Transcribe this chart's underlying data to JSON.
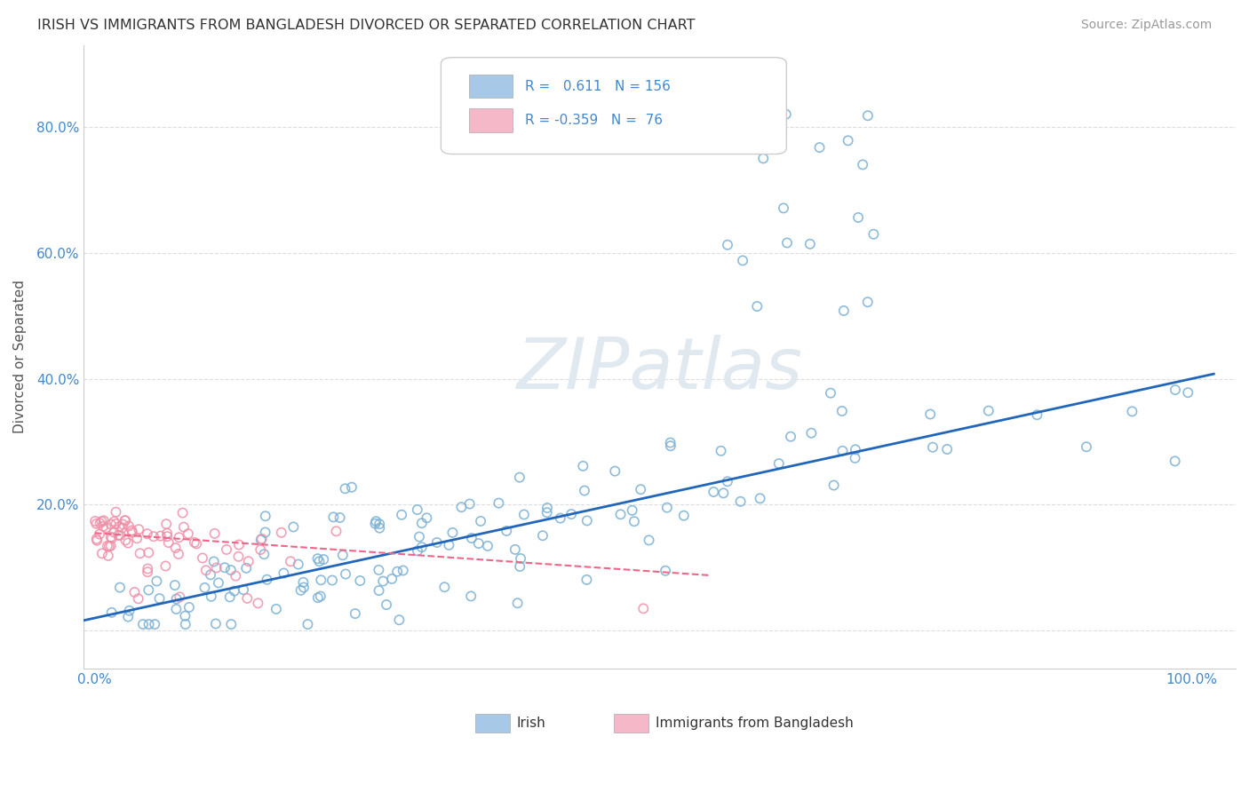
{
  "title": "IRISH VS IMMIGRANTS FROM BANGLADESH DIVORCED OR SEPARATED CORRELATION CHART",
  "source": "Source: ZipAtlas.com",
  "ylabel": "Divorced or Separated",
  "legend_irish": {
    "R": 0.611,
    "N": 156,
    "color": "#a8c8e8"
  },
  "legend_bangladesh": {
    "R": -0.359,
    "N": 76,
    "color": "#f4b8c8"
  },
  "irish_scatter_color": "#7ab0d4",
  "bangladesh_scatter_color": "#f090a8",
  "irish_line_color": "#2266bb",
  "bangladesh_line_color": "#ee6688",
  "background_color": "#ffffff",
  "watermark_color": "#e0e8f0",
  "grid_color": "#dddddd",
  "tick_color": "#4488cc",
  "title_color": "#333333",
  "source_color": "#999999",
  "ylabel_color": "#555555"
}
